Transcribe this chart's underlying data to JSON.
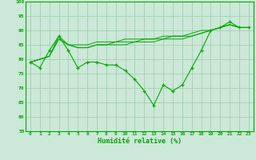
{
  "x": [
    0,
    1,
    2,
    3,
    4,
    5,
    6,
    7,
    8,
    9,
    10,
    11,
    12,
    13,
    14,
    15,
    16,
    17,
    18,
    19,
    20,
    21,
    22,
    23
  ],
  "line_main": [
    79,
    77,
    83,
    88,
    83,
    77,
    79,
    79,
    78,
    78,
    76,
    73,
    69,
    64,
    71,
    69,
    71,
    77,
    83,
    90,
    91,
    93,
    91,
    91
  ],
  "line_upper1": [
    79,
    80,
    81,
    88,
    85,
    85,
    85,
    86,
    86,
    86,
    87,
    87,
    87,
    87,
    88,
    88,
    88,
    89,
    90,
    90,
    91,
    92,
    91,
    91
  ],
  "line_upper2": [
    79,
    80,
    81,
    87,
    85,
    84,
    84,
    85,
    85,
    86,
    86,
    86,
    87,
    87,
    87,
    88,
    88,
    88,
    89,
    90,
    91,
    92,
    91,
    91
  ],
  "line_upper3": [
    79,
    80,
    81,
    87,
    85,
    84,
    84,
    85,
    85,
    85,
    85,
    86,
    86,
    86,
    87,
    87,
    87,
    88,
    89,
    90,
    91,
    92,
    91,
    91
  ],
  "background_color": "#cce8d8",
  "grid_color": "#99ccaa",
  "line_color": "#00aa00",
  "xlabel": "Humidité relative (%)",
  "ylim": [
    55,
    100
  ],
  "xlim": [
    -0.5,
    23.5
  ],
  "yticks": [
    55,
    60,
    65,
    70,
    75,
    80,
    85,
    90,
    95,
    100
  ],
  "xticks": [
    0,
    1,
    2,
    3,
    4,
    5,
    6,
    7,
    8,
    9,
    10,
    11,
    12,
    13,
    14,
    15,
    16,
    17,
    18,
    19,
    20,
    21,
    22,
    23
  ]
}
